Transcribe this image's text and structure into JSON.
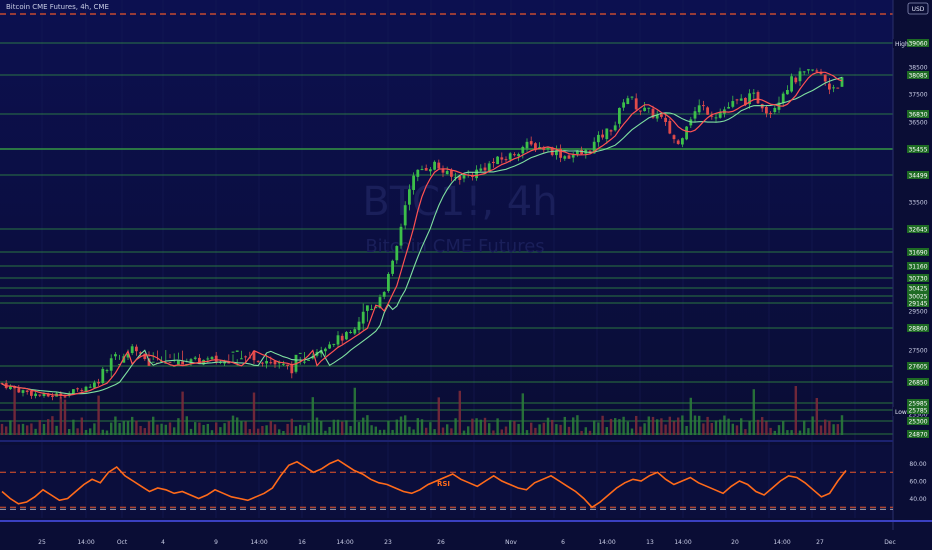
{
  "header": {
    "symbol_line": "Bitcoin CME Futures, 4h, CME",
    "currency": "USD"
  },
  "watermark": {
    "ticker": "BTC1!, 4h",
    "name": "Bitcoin CME Futures"
  },
  "indicators": {
    "rsi_label": "RSI",
    "high_tag": "High",
    "low_tag": "Low"
  },
  "colors": {
    "background": "#0a0d35",
    "level_line": "#3cb043",
    "level_box": "#1e6b24",
    "candle_up": "#3cbf4a",
    "candle_down": "#e04a4a",
    "ma_fast": "#ff5252",
    "ma_slow": "#7fe0a0",
    "rsi_line": "#ff6a1a",
    "rsi_band": "#e8552a",
    "high_dash": "#e8552a"
  },
  "chart_data": {
    "type": "candlestick",
    "title": "Bitcoin CME Futures, 4h, CME",
    "currency": "USD",
    "x_tick_labels": [
      "25",
      "14:00",
      "Oct",
      "4",
      "9",
      "14:00",
      "16",
      "14:00",
      "23",
      "26",
      "Nov",
      "6",
      "14:00",
      "13",
      "14:00",
      "20",
      "14:00",
      "27",
      "Dec"
    ],
    "y_tick_labels": [
      {
        "text": "39060",
        "value": 39060
      },
      {
        "text": "38500",
        "value": 38500
      },
      {
        "text": "37500",
        "value": 37500
      },
      {
        "text": "36500",
        "value": 36500
      },
      {
        "text": "33500",
        "value": 33500
      },
      {
        "text": "29500",
        "value": 29500
      },
      {
        "text": "27500",
        "value": 27500
      },
      {
        "text": "25500",
        "value": 25500
      }
    ],
    "price_levels": [
      39060,
      38085,
      36830,
      35455,
      34499,
      32645,
      31690,
      31160,
      30730,
      30425,
      30025,
      29145,
      28860,
      27605,
      26850,
      25985,
      25785,
      25300,
      24870
    ],
    "level_labels": [
      "39060",
      "38085",
      "36830",
      "35455",
      "34499",
      "32645",
      "31690",
      "31160",
      "30730",
      "30425",
      "30025",
      "29145",
      "28860",
      "27605",
      "26850",
      "25985",
      "25785",
      "25300",
      "24870"
    ],
    "ylim": [
      24870,
      39060
    ],
    "rsi": {
      "name": "RSI",
      "ticks": [
        "80.00",
        "60.00",
        "40.00"
      ],
      "bands": [
        70,
        30
      ],
      "ylim": [
        20,
        100
      ],
      "values": [
        48,
        40,
        34,
        36,
        42,
        50,
        44,
        38,
        40,
        48,
        56,
        62,
        58,
        70,
        76,
        66,
        60,
        54,
        48,
        52,
        50,
        46,
        48,
        44,
        40,
        44,
        50,
        46,
        42,
        40,
        38,
        42,
        46,
        52,
        66,
        78,
        82,
        76,
        70,
        74,
        80,
        84,
        78,
        72,
        68,
        62,
        58,
        56,
        52,
        48,
        46,
        50,
        56,
        60,
        64,
        68,
        62,
        58,
        54,
        60,
        66,
        60,
        56,
        52,
        50,
        58,
        62,
        66,
        60,
        54,
        48,
        40,
        30,
        36,
        44,
        52,
        58,
        62,
        60,
        66,
        70,
        62,
        56,
        60,
        64,
        58,
        54,
        50,
        46,
        54,
        60,
        56,
        48,
        44,
        52,
        60,
        66,
        64,
        58,
        50,
        42,
        46,
        60,
        72
      ]
    },
    "legend": "none",
    "grid": true
  }
}
